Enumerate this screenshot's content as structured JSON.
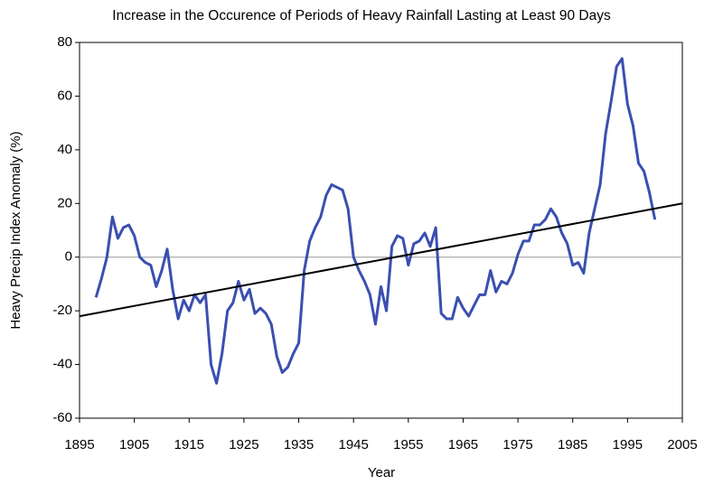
{
  "chart_data": {
    "type": "line",
    "title": "Increase in the Occurence of Periods of Heavy Rainfall Lasting at Least 90 Days",
    "x_label": "Year",
    "y_label": "Heavy Precip Index Anomaly (%)",
    "x": [
      1898,
      1899,
      1900,
      1901,
      1902,
      1903,
      1904,
      1905,
      1906,
      1907,
      1908,
      1909,
      1910,
      1911,
      1912,
      1913,
      1914,
      1915,
      1916,
      1917,
      1918,
      1919,
      1920,
      1921,
      1922,
      1923,
      1924,
      1925,
      1926,
      1927,
      1928,
      1929,
      1930,
      1931,
      1932,
      1933,
      1934,
      1935,
      1936,
      1937,
      1938,
      1939,
      1940,
      1941,
      1942,
      1943,
      1944,
      1945,
      1946,
      1947,
      1948,
      1949,
      1950,
      1951,
      1952,
      1953,
      1954,
      1955,
      1956,
      1957,
      1958,
      1959,
      1960,
      1961,
      1962,
      1963,
      1964,
      1965,
      1966,
      1967,
      1968,
      1969,
      1970,
      1971,
      1972,
      1973,
      1974,
      1975,
      1976,
      1977,
      1978,
      1979,
      1980,
      1981,
      1982,
      1983,
      1984,
      1985,
      1986,
      1987,
      1988,
      1989,
      1990,
      1991,
      1992,
      1993,
      1994,
      1995,
      1996,
      1997,
      1998,
      1999,
      2000
    ],
    "series": [
      {
        "color": "#3b4fb0",
        "values": [
          -15,
          -8,
          0,
          15,
          7,
          11,
          12,
          8,
          0,
          -2,
          -3,
          -11,
          -5,
          3,
          -12,
          -23,
          -16,
          -20,
          -14,
          -17,
          -14,
          -40,
          -47,
          -36,
          -20,
          -17,
          -9,
          -16,
          -12,
          -21,
          -19,
          -21,
          -25,
          -37,
          -43,
          -41,
          -36,
          -32,
          -5,
          6,
          11,
          15,
          23,
          27,
          26,
          25,
          18,
          0,
          -5,
          -9,
          -14,
          -25,
          -11,
          -20,
          4,
          8,
          7,
          -3,
          5,
          6,
          9,
          4,
          11,
          -21,
          -23,
          -23,
          -15,
          -19,
          -22,
          -18,
          -14,
          -14,
          -5,
          -13,
          -9,
          -10,
          -6,
          1,
          6,
          6,
          12,
          12,
          14,
          18,
          15,
          9,
          5,
          -3,
          -2,
          -6,
          9,
          18,
          27,
          46,
          58,
          71,
          74,
          57,
          49,
          35,
          32,
          24,
          14
        ]
      }
    ],
    "trendline": {
      "x": [
        1895,
        2005
      ],
      "values": [
        -22,
        20
      ],
      "color": "#000000"
    },
    "ref_line": 0,
    "xlim": [
      1895,
      2005
    ],
    "xticks": [
      1895,
      1905,
      1915,
      1925,
      1935,
      1945,
      1955,
      1965,
      1975,
      1985,
      1995,
      2005
    ],
    "ylim": [
      -60,
      80
    ],
    "yticks": [
      -60,
      -40,
      -20,
      0,
      20,
      40,
      60,
      80
    ]
  }
}
